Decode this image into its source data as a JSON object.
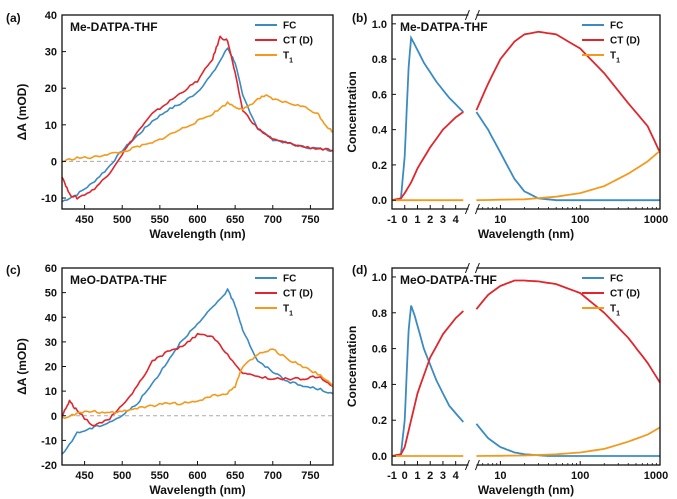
{
  "colors": {
    "FC": "#3b8bc2",
    "CT": "#e0262d",
    "T1": "#f39a1e",
    "zero": "#aaaaaa",
    "axis": "#111111"
  },
  "chart_data": [
    {
      "id": "a",
      "panel_label": "(a)",
      "type": "line",
      "title": "Me-DATPA-THF",
      "xlabel": "Wavelength (nm)",
      "ylabel": "ΔA (mOD)",
      "xlim": [
        420,
        780
      ],
      "ylim": [
        -13,
        40
      ],
      "xticks": [
        450,
        500,
        550,
        600,
        650,
        700,
        750
      ],
      "yticks": [
        -10,
        0,
        10,
        20,
        30,
        40
      ],
      "zero_line": true,
      "legend": "top-right",
      "series": [
        {
          "name": "FC",
          "color_key": "FC",
          "x": [
            420,
            440,
            460,
            480,
            500,
            520,
            540,
            560,
            580,
            600,
            620,
            640,
            650,
            660,
            680,
            700,
            720,
            740,
            760,
            780
          ],
          "y": [
            -11,
            -9,
            -6,
            -2,
            3,
            7,
            11,
            14,
            16,
            19,
            24,
            31,
            27,
            18,
            9,
            6,
            5,
            4,
            3.5,
            3
          ]
        },
        {
          "name": "CT (D)",
          "color_key": "CT",
          "x": [
            420,
            430,
            440,
            460,
            480,
            500,
            520,
            540,
            560,
            580,
            600,
            620,
            630,
            640,
            650,
            660,
            680,
            700,
            720,
            740,
            760,
            780
          ],
          "y": [
            -4,
            -9,
            -10,
            -8,
            -4,
            2,
            8,
            13,
            16,
            19,
            22,
            28,
            34,
            33,
            24,
            14,
            9,
            6,
            5,
            4,
            3.5,
            3
          ]
        },
        {
          "name": "T1",
          "color_key": "T1",
          "x": [
            420,
            440,
            460,
            480,
            500,
            520,
            540,
            560,
            580,
            600,
            620,
            640,
            650,
            660,
            680,
            690,
            700,
            720,
            740,
            760,
            770,
            780
          ],
          "y": [
            0,
            1,
            1,
            2,
            2.5,
            4,
            5,
            7,
            9,
            11,
            13,
            16,
            15,
            14,
            17,
            18,
            17,
            16,
            15,
            13,
            10,
            8
          ]
        }
      ]
    },
    {
      "id": "b",
      "panel_label": "(b)",
      "type": "line",
      "title": "Me-DATPA-THF",
      "xlabel": "Wavelength (nm)",
      "ylabel": "Concentration",
      "broken_x_axis": true,
      "xlim_linear": [
        -1,
        5
      ],
      "xlim_log": [
        5,
        1000
      ],
      "ylim": [
        -0.05,
        1.05
      ],
      "xticks_linear": [
        -1,
        0,
        1,
        2,
        3,
        4
      ],
      "xticks_log": [
        10,
        100,
        1000
      ],
      "yticks": [
        0.0,
        0.2,
        0.4,
        0.6,
        0.8,
        1.0
      ],
      "legend": "top-right",
      "series": [
        {
          "name": "FC",
          "color_key": "FC",
          "lin": [
            [
              -1,
              0
            ],
            [
              -0.3,
              0.01
            ],
            [
              0,
              0.25
            ],
            [
              0.3,
              0.75
            ],
            [
              0.5,
              0.92
            ],
            [
              0.8,
              0.88
            ],
            [
              1.5,
              0.78
            ],
            [
              2.5,
              0.67
            ],
            [
              3.5,
              0.58
            ],
            [
              4.6,
              0.5
            ]
          ],
          "log": [
            [
              5,
              0.5
            ],
            [
              7,
              0.4
            ],
            [
              10,
              0.27
            ],
            [
              15,
              0.12
            ],
            [
              20,
              0.05
            ],
            [
              30,
              0.01
            ],
            [
              50,
              0
            ],
            [
              1000,
              0
            ]
          ]
        },
        {
          "name": "CT (D)",
          "color_key": "CT",
          "lin": [
            [
              -1,
              0
            ],
            [
              -0.3,
              0.01
            ],
            [
              0,
              0.04
            ],
            [
              0.5,
              0.1
            ],
            [
              1,
              0.18
            ],
            [
              2,
              0.3
            ],
            [
              3,
              0.4
            ],
            [
              4,
              0.47
            ],
            [
              4.6,
              0.5
            ]
          ],
          "log": [
            [
              5,
              0.51
            ],
            [
              7,
              0.66
            ],
            [
              10,
              0.8
            ],
            [
              15,
              0.9
            ],
            [
              20,
              0.94
            ],
            [
              30,
              0.955
            ],
            [
              50,
              0.94
            ],
            [
              100,
              0.86
            ],
            [
              200,
              0.72
            ],
            [
              400,
              0.55
            ],
            [
              700,
              0.42
            ],
            [
              1000,
              0.27
            ]
          ]
        },
        {
          "name": "T1",
          "color_key": "T1",
          "lin": [
            [
              -1,
              0
            ],
            [
              4.6,
              0
            ]
          ],
          "log": [
            [
              5,
              0
            ],
            [
              20,
              0.005
            ],
            [
              50,
              0.02
            ],
            [
              100,
              0.04
            ],
            [
              200,
              0.08
            ],
            [
              400,
              0.15
            ],
            [
              700,
              0.22
            ],
            [
              1000,
              0.28
            ]
          ]
        }
      ]
    },
    {
      "id": "c",
      "panel_label": "(c)",
      "type": "line",
      "title": "MeO-DATPA-THF",
      "xlabel": "Wavelength (nm)",
      "ylabel": "ΔA (mOD)",
      "xlim": [
        420,
        780
      ],
      "ylim": [
        -20,
        60
      ],
      "xticks": [
        450,
        500,
        550,
        600,
        650,
        700,
        750
      ],
      "yticks": [
        -20,
        -10,
        0,
        10,
        20,
        30,
        40,
        50,
        60
      ],
      "zero_line": true,
      "legend": "top-right",
      "series": [
        {
          "name": "FC",
          "color_key": "FC",
          "x": [
            420,
            440,
            460,
            480,
            500,
            520,
            540,
            560,
            580,
            600,
            620,
            640,
            650,
            660,
            680,
            700,
            720,
            740,
            760,
            780
          ],
          "y": [
            -16,
            -7,
            -5,
            -3,
            0,
            5,
            13,
            22,
            31,
            37,
            44,
            51,
            45,
            35,
            22,
            18,
            14,
            12,
            11,
            9
          ]
        },
        {
          "name": "CT (D)",
          "color_key": "CT",
          "x": [
            420,
            430,
            440,
            460,
            480,
            500,
            520,
            540,
            560,
            580,
            600,
            620,
            640,
            660,
            680,
            700,
            720,
            740,
            760,
            780
          ],
          "y": [
            0,
            6,
            2,
            -4,
            -2,
            4,
            12,
            22,
            26,
            28,
            33,
            32,
            25,
            17,
            16,
            15,
            15,
            15,
            16,
            12
          ]
        },
        {
          "name": "T1",
          "color_key": "T1",
          "x": [
            420,
            440,
            460,
            480,
            500,
            520,
            540,
            560,
            580,
            600,
            620,
            640,
            650,
            660,
            680,
            700,
            720,
            740,
            760,
            780
          ],
          "y": [
            -1,
            1,
            2,
            1,
            2,
            3,
            4,
            5,
            5,
            6,
            8,
            9,
            12,
            20,
            25,
            27,
            23,
            20,
            17,
            12
          ]
        }
      ]
    },
    {
      "id": "d",
      "panel_label": "(d)",
      "type": "line",
      "title": "MeO-DATPA-THF",
      "xlabel": "Wavelength (nm)",
      "ylabel": "Concentration",
      "broken_x_axis": true,
      "xlim_linear": [
        -1,
        5
      ],
      "xlim_log": [
        5,
        1000
      ],
      "ylim": [
        -0.05,
        1.05
      ],
      "xticks_linear": [
        -1,
        0,
        1,
        2,
        3,
        4
      ],
      "xticks_log": [
        10,
        100,
        1000
      ],
      "yticks": [
        0.0,
        0.2,
        0.4,
        0.6,
        0.8,
        1.0
      ],
      "legend": "top-right",
      "series": [
        {
          "name": "FC",
          "color_key": "FC",
          "lin": [
            [
              -1,
              0
            ],
            [
              -0.3,
              0.01
            ],
            [
              0,
              0.2
            ],
            [
              0.3,
              0.7
            ],
            [
              0.5,
              0.84
            ],
            [
              0.8,
              0.78
            ],
            [
              1.5,
              0.6
            ],
            [
              2.5,
              0.42
            ],
            [
              3.5,
              0.28
            ],
            [
              4.6,
              0.19
            ]
          ],
          "log": [
            [
              5,
              0.18
            ],
            [
              7,
              0.1
            ],
            [
              10,
              0.05
            ],
            [
              15,
              0.02
            ],
            [
              20,
              0.01
            ],
            [
              40,
              0
            ],
            [
              1000,
              0
            ]
          ]
        },
        {
          "name": "CT (D)",
          "color_key": "CT",
          "lin": [
            [
              -1,
              0
            ],
            [
              -0.3,
              0.01
            ],
            [
              0,
              0.05
            ],
            [
              0.5,
              0.2
            ],
            [
              1,
              0.35
            ],
            [
              2,
              0.55
            ],
            [
              3,
              0.68
            ],
            [
              4,
              0.77
            ],
            [
              4.6,
              0.81
            ]
          ],
          "log": [
            [
              5,
              0.82
            ],
            [
              7,
              0.9
            ],
            [
              10,
              0.95
            ],
            [
              15,
              0.98
            ],
            [
              20,
              0.98
            ],
            [
              30,
              0.975
            ],
            [
              50,
              0.96
            ],
            [
              100,
              0.91
            ],
            [
              200,
              0.8
            ],
            [
              400,
              0.66
            ],
            [
              700,
              0.52
            ],
            [
              1000,
              0.41
            ]
          ]
        },
        {
          "name": "T1",
          "color_key": "T1",
          "lin": [
            [
              -1,
              0
            ],
            [
              4.6,
              0
            ]
          ],
          "log": [
            [
              5,
              0
            ],
            [
              20,
              0.003
            ],
            [
              50,
              0.01
            ],
            [
              100,
              0.02
            ],
            [
              200,
              0.04
            ],
            [
              400,
              0.08
            ],
            [
              700,
              0.12
            ],
            [
              1000,
              0.16
            ]
          ]
        }
      ]
    }
  ]
}
